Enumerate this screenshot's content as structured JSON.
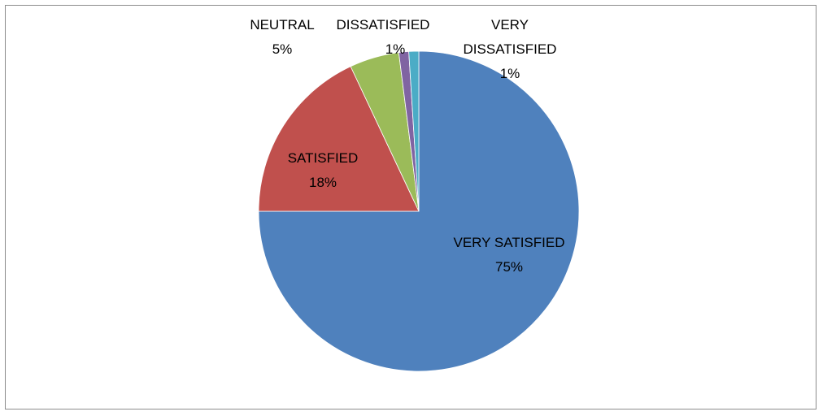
{
  "chart_data": {
    "type": "pie",
    "title": "",
    "slices": [
      {
        "label": "VERY SATISFIED",
        "value": 75,
        "display": "75%",
        "color": "#4f81bd"
      },
      {
        "label": "SATISFIED",
        "value": 18,
        "display": "18%",
        "color": "#c0504d"
      },
      {
        "label": "NEUTRAL",
        "value": 5,
        "display": "5%",
        "color": "#9bbb59"
      },
      {
        "label": "DISSATISFIED",
        "value": 1,
        "display": "1%",
        "color": "#8064a2"
      },
      {
        "label": "VERY DISSATISFIED",
        "value": 1,
        "display": "1%",
        "color": "#4bacc6"
      }
    ],
    "legend": "none"
  }
}
